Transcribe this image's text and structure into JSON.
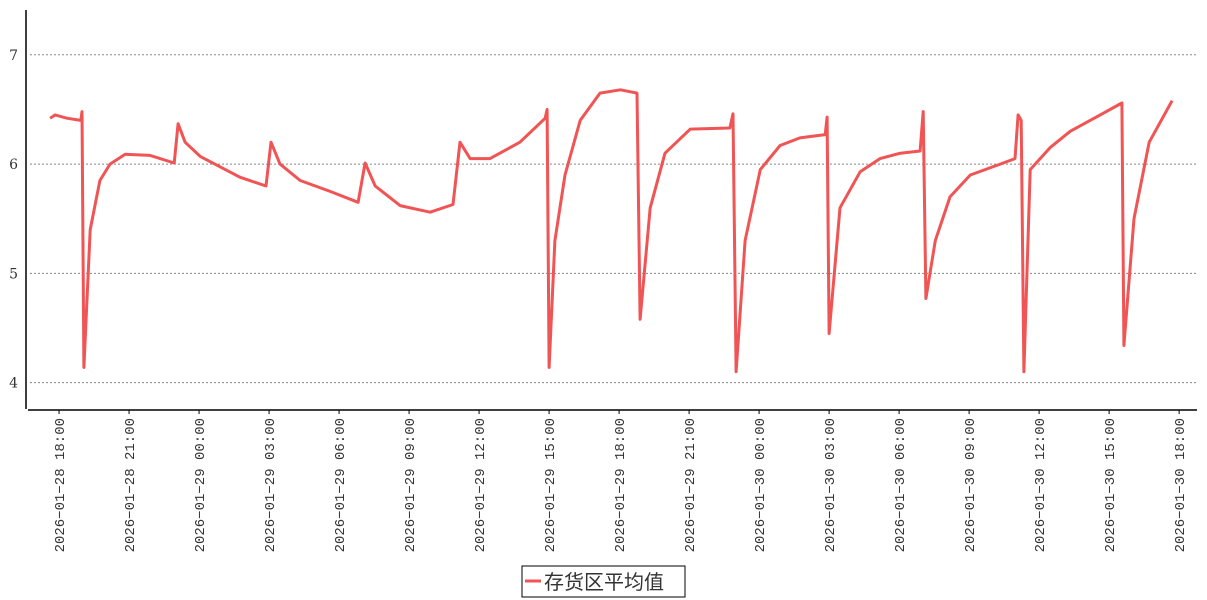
{
  "chart_data": {
    "type": "line",
    "title": "",
    "xlabel": "",
    "ylabel": "",
    "x_type": "datetime",
    "xlim": [
      "2026-01-28 16:35",
      "2026-01-30 18:46"
    ],
    "ylim": [
      3.75,
      7.41
    ],
    "grid": {
      "y": true,
      "x": false,
      "style": "dotted"
    },
    "legend_position": "bottom-center",
    "x_ticks": [
      "2026-01-28 18:00",
      "2026-01-28 21:00",
      "2026-01-29 00:00",
      "2026-01-29 03:00",
      "2026-01-29 06:00",
      "2026-01-29 09:00",
      "2026-01-29 12:00",
      "2026-01-29 15:00",
      "2026-01-29 18:00",
      "2026-01-29 21:00",
      "2026-01-30 00:00",
      "2026-01-30 03:00",
      "2026-01-30 06:00",
      "2026-01-30 09:00",
      "2026-01-30 12:00",
      "2026-01-30 15:00",
      "2026-01-30 18:00"
    ],
    "y_ticks": [
      4,
      5,
      6,
      7
    ],
    "series": [
      {
        "name": "存货区平均值",
        "color": "#f05454",
        "points": [
          [
            "2026-01-28 17:37",
            6.42
          ],
          [
            "2026-01-28 17:50",
            6.45
          ],
          [
            "2026-01-28 18:20",
            6.42
          ],
          [
            "2026-01-28 18:56",
            6.4
          ],
          [
            "2026-01-28 18:59",
            6.48
          ],
          [
            "2026-01-28 19:04",
            4.14
          ],
          [
            "2026-01-28 19:20",
            5.4
          ],
          [
            "2026-01-28 19:45",
            5.85
          ],
          [
            "2026-01-28 20:11",
            6.0
          ],
          [
            "2026-01-28 20:50",
            6.09
          ],
          [
            "2026-01-28 21:54",
            6.08
          ],
          [
            "2026-01-28 22:56",
            6.01
          ],
          [
            "2026-01-28 23:06",
            6.37
          ],
          [
            "2026-01-28 23:24",
            6.2
          ],
          [
            "2026-01-29 00:03",
            6.07
          ],
          [
            "2026-01-29 01:45",
            5.88
          ],
          [
            "2026-01-29 02:52",
            5.8
          ],
          [
            "2026-01-29 03:05",
            6.2
          ],
          [
            "2026-01-29 03:28",
            6.0
          ],
          [
            "2026-01-29 04:20",
            5.85
          ],
          [
            "2026-01-29 05:37",
            5.75
          ],
          [
            "2026-01-29 06:49",
            5.65
          ],
          [
            "2026-01-29 07:07",
            6.01
          ],
          [
            "2026-01-29 07:33",
            5.8
          ],
          [
            "2026-01-29 08:37",
            5.62
          ],
          [
            "2026-01-29 09:54",
            5.56
          ],
          [
            "2026-01-29 10:53",
            5.63
          ],
          [
            "2026-01-29 11:11",
            6.2
          ],
          [
            "2026-01-29 11:37",
            6.05
          ],
          [
            "2026-01-29 12:28",
            6.05
          ],
          [
            "2026-01-29 13:45",
            6.2
          ],
          [
            "2026-01-29 14:50",
            6.42
          ],
          [
            "2026-01-29 14:55",
            6.5
          ],
          [
            "2026-01-29 15:00",
            4.14
          ],
          [
            "2026-01-29 15:15",
            5.3
          ],
          [
            "2026-01-29 15:41",
            5.9
          ],
          [
            "2026-01-29 16:20",
            6.4
          ],
          [
            "2026-01-29 17:11",
            6.65
          ],
          [
            "2026-01-29 18:03",
            6.68
          ],
          [
            "2026-01-29 18:46",
            6.65
          ],
          [
            "2026-01-29 18:54",
            4.58
          ],
          [
            "2026-01-29 19:20",
            5.6
          ],
          [
            "2026-01-29 19:58",
            6.1
          ],
          [
            "2026-01-29 21:03",
            6.32
          ],
          [
            "2026-01-29 22:45",
            6.33
          ],
          [
            "2026-01-29 22:53",
            6.46
          ],
          [
            "2026-01-29 23:01",
            4.1
          ],
          [
            "2026-01-29 23:24",
            5.3
          ],
          [
            "2026-01-30 00:03",
            5.95
          ],
          [
            "2026-01-30 00:54",
            6.17
          ],
          [
            "2026-01-30 01:45",
            6.24
          ],
          [
            "2026-01-30 02:50",
            6.27
          ],
          [
            "2026-01-30 02:55",
            6.43
          ],
          [
            "2026-01-30 03:00",
            4.45
          ],
          [
            "2026-01-30 03:28",
            5.6
          ],
          [
            "2026-01-30 04:20",
            5.93
          ],
          [
            "2026-01-30 05:11",
            6.05
          ],
          [
            "2026-01-30 06:03",
            6.1
          ],
          [
            "2026-01-30 06:54",
            6.12
          ],
          [
            "2026-01-30 07:02",
            6.48
          ],
          [
            "2026-01-30 07:09",
            4.77
          ],
          [
            "2026-01-30 07:33",
            5.3
          ],
          [
            "2026-01-30 08:11",
            5.7
          ],
          [
            "2026-01-30 09:03",
            5.9
          ],
          [
            "2026-01-30 10:20",
            6.0
          ],
          [
            "2026-01-30 10:58",
            6.05
          ],
          [
            "2026-01-30 11:06",
            6.45
          ],
          [
            "2026-01-30 11:14",
            6.4
          ],
          [
            "2026-01-30 11:21",
            4.1
          ],
          [
            "2026-01-30 11:37",
            5.95
          ],
          [
            "2026-01-30 12:28",
            6.15
          ],
          [
            "2026-01-30 13:20",
            6.3
          ],
          [
            "2026-01-30 14:37",
            6.45
          ],
          [
            "2026-01-30 15:28",
            6.55
          ],
          [
            "2026-01-30 15:33",
            6.56
          ],
          [
            "2026-01-30 15:38",
            4.34
          ],
          [
            "2026-01-30 16:04",
            5.5
          ],
          [
            "2026-01-30 16:43",
            6.2
          ],
          [
            "2026-01-30 17:42",
            6.58
          ]
        ]
      }
    ]
  }
}
